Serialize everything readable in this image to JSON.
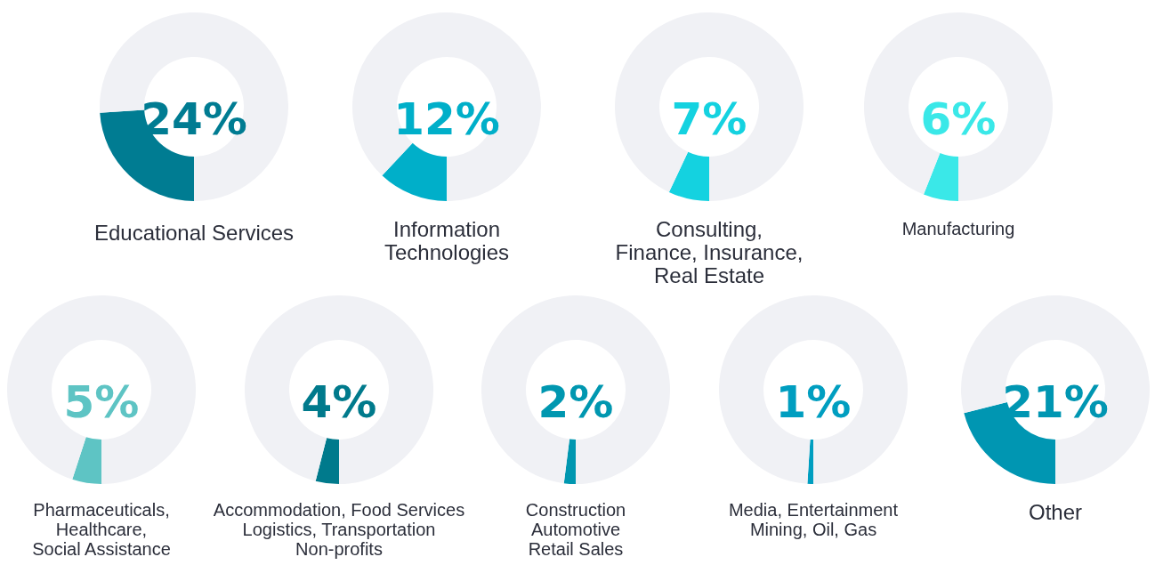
{
  "chart_data": [
    {
      "type": "donut",
      "categories": [
        "Educational Services",
        null
      ],
      "values": [
        24,
        76
      ],
      "colors": [
        "#007c92",
        "#f0f1f5"
      ],
      "value_labels": [
        "24%",
        null
      ]
    },
    {
      "type": "donut",
      "categories": [
        "Information\nTechnologies",
        null
      ],
      "values": [
        12,
        88
      ],
      "colors": [
        "#00afc9",
        "#f0f1f5"
      ],
      "value_labels": [
        "12%",
        null
      ]
    },
    {
      "type": "donut",
      "categories": [
        "Consulting,\nFinance, Insurance,\nReal Estate",
        null
      ],
      "values": [
        7,
        93
      ],
      "colors": [
        "#14d2e0",
        "#f0f1f5"
      ],
      "value_labels": [
        "7%",
        null
      ]
    },
    {
      "type": "donut",
      "categories": [
        "Manufacturing",
        null
      ],
      "values": [
        6,
        94
      ],
      "colors": [
        "#3ae8e8",
        "#f0f1f5"
      ],
      "value_labels": [
        "6%",
        null
      ]
    },
    {
      "type": "donut",
      "categories": [
        "Pharmaceuticals,\nHealthcare,\nSocial Assistance",
        null
      ],
      "values": [
        5,
        95
      ],
      "colors": [
        "#5ec4c4",
        "#f0f1f5"
      ],
      "value_labels": [
        "5%",
        null
      ]
    },
    {
      "type": "donut",
      "categories": [
        "Accommodation, Food Services\nLogistics, Transportation\nNon-profits",
        null
      ],
      "values": [
        4,
        96
      ],
      "colors": [
        "#007a8c",
        "#f0f1f5"
      ],
      "value_labels": [
        "4%",
        null
      ]
    },
    {
      "type": "donut",
      "categories": [
        "Construction\nAutomotive\nRetail Sales",
        null
      ],
      "values": [
        2,
        98
      ],
      "colors": [
        "#0097b0",
        "#f0f1f5"
      ],
      "value_labels": [
        "2%",
        null
      ]
    },
    {
      "type": "donut",
      "categories": [
        "Media, Entertainment\nMining, Oil, Gas",
        null
      ],
      "values": [
        1,
        99
      ],
      "colors": [
        "#009ec0",
        "#f0f1f5"
      ],
      "value_labels": [
        "1%",
        null
      ]
    },
    {
      "type": "donut",
      "categories": [
        "Other",
        null
      ],
      "values": [
        21,
        79
      ],
      "colors": [
        "#0096b2",
        "#f0f1f5"
      ],
      "value_labels": [
        "21%",
        null
      ]
    }
  ]
}
